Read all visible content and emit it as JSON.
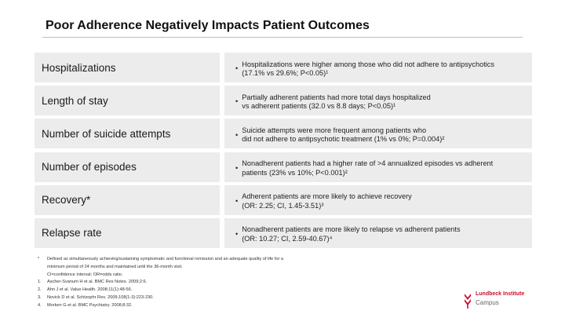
{
  "slide": {
    "title": "Poor Adherence Negatively Impacts Patient Outcomes",
    "colors": {
      "row_background": "#ececec",
      "brand_red": "#c8102e",
      "rule": "#bdbdbd"
    }
  },
  "rows": [
    {
      "label": "Hospitalizations",
      "bullet": "•",
      "description": "Hospitalizations were higher among those who did not adhere to antipsychotics\n(17.1% vs 29.6%; P<0.05)¹"
    },
    {
      "label": "Length of stay",
      "bullet": "•",
      "description": "Partially adherent patients had more total days hospitalized\nvs adherent patients (32.0 vs 8.8 days; P<0.05)¹"
    },
    {
      "label": "Number of suicide attempts",
      "bullet": "•",
      "description": "Suicide attempts were more frequent among patients who\ndid not adhere to antipsychotic treatment (1% vs 0%; P=0.004)²"
    },
    {
      "label": "Number of episodes",
      "bullet": "•",
      "description": "Nonadherent patients had a higher rate of >4 annualized episodes vs adherent\npatients (23% vs 10%; P<0.001)²"
    },
    {
      "label": "Recovery*",
      "bullet": "•",
      "description": "Adherent patients are more likely to achieve recovery\n(OR: 2.25; CI, 1.45-3.51)³"
    },
    {
      "label": "Relapse rate",
      "bullet": "•",
      "description": "Nonadherent patients are more likely to relapse vs adherent patients\n(OR: 10.27; CI, 2.59-40.67)⁴"
    }
  ],
  "footnotes": {
    "asterisk_mark": "*",
    "asterisk_text": "Defined as simultaneously achieving/sustaining symptomatic and functional remission and an adequate quality of life for a minimum period of 24 months and maintained until the 36-month visit.",
    "abbrev": "CI=confidence interval; OR=odds ratio.",
    "references": [
      {
        "num": "1.",
        "text": "Ascher-Svanum H et al. BMC Res Notes. 2009;2:6."
      },
      {
        "num": "2.",
        "text": "Ahn J et al. Value Health. 2008;11(1):48-56."
      },
      {
        "num": "3.",
        "text": "Novick D et al. Schizophr Res. 2009;108(1-3):223-230."
      },
      {
        "num": "4.",
        "text": "Morken G et al. BMC Psychiatry. 2008;8:32."
      }
    ]
  },
  "logo": {
    "icon": "lundbeck-logo-icon",
    "name": "Lundbeck Institute",
    "sub": "Campus"
  }
}
